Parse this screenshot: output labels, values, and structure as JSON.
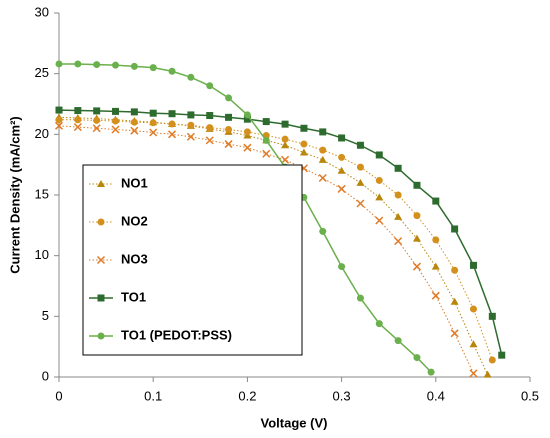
{
  "chart_data": {
    "type": "line",
    "xlabel": "Voltage (V)",
    "ylabel": "Current Density (mA/cm²)",
    "xlim": [
      0,
      0.5
    ],
    "xticks": [
      0,
      0.1,
      0.2,
      0.3,
      0.4,
      0.5
    ],
    "ylim": [
      0,
      30
    ],
    "yticks": [
      0,
      5,
      10,
      15,
      20,
      25,
      30
    ],
    "legend": "lower left",
    "series": [
      {
        "name": "NO1",
        "color": "#b8860b",
        "marker": "triangle",
        "line_style": "dotted",
        "x": [
          0,
          0.02,
          0.04,
          0.06,
          0.08,
          0.1,
          0.12,
          0.14,
          0.16,
          0.18,
          0.2,
          0.22,
          0.24,
          0.26,
          0.28,
          0.3,
          0.32,
          0.34,
          0.36,
          0.38,
          0.4,
          0.42,
          0.44,
          0.455
        ],
        "values": [
          21.4,
          21.35,
          21.3,
          21.2,
          21.1,
          21.0,
          20.85,
          20.7,
          20.45,
          20.2,
          19.9,
          19.5,
          19.1,
          18.5,
          17.9,
          17.0,
          16.0,
          14.8,
          13.2,
          11.4,
          9.1,
          6.2,
          2.7,
          0.2
        ]
      },
      {
        "name": "NO2",
        "color": "#d4901c",
        "marker": "circle",
        "line_style": "dotted",
        "x": [
          0,
          0.02,
          0.04,
          0.06,
          0.08,
          0.1,
          0.12,
          0.14,
          0.16,
          0.18,
          0.2,
          0.22,
          0.24,
          0.26,
          0.28,
          0.3,
          0.32,
          0.34,
          0.36,
          0.38,
          0.4,
          0.42,
          0.44,
          0.46
        ],
        "values": [
          21.2,
          21.2,
          21.15,
          21.1,
          21.0,
          20.95,
          20.85,
          20.75,
          20.55,
          20.4,
          20.2,
          19.9,
          19.6,
          19.2,
          18.7,
          18.1,
          17.3,
          16.2,
          15.0,
          13.3,
          11.3,
          8.8,
          5.6,
          1.4
        ]
      },
      {
        "name": "NO3",
        "color": "#e07b28",
        "marker": "x",
        "line_style": "dotted",
        "x": [
          0,
          0.02,
          0.04,
          0.06,
          0.08,
          0.1,
          0.12,
          0.14,
          0.16,
          0.18,
          0.2,
          0.22,
          0.24,
          0.26,
          0.28,
          0.3,
          0.32,
          0.34,
          0.36,
          0.38,
          0.4,
          0.42,
          0.44
        ],
        "values": [
          20.7,
          20.6,
          20.5,
          20.4,
          20.3,
          20.15,
          20.0,
          19.8,
          19.5,
          19.2,
          18.9,
          18.4,
          17.9,
          17.2,
          16.4,
          15.5,
          14.3,
          12.9,
          11.2,
          9.1,
          6.7,
          3.6,
          0.3
        ]
      },
      {
        "name": "TO1",
        "color": "#2e6b2e",
        "marker": "square",
        "line_style": "solid",
        "x": [
          0,
          0.02,
          0.04,
          0.06,
          0.08,
          0.1,
          0.12,
          0.14,
          0.16,
          0.18,
          0.2,
          0.22,
          0.24,
          0.26,
          0.28,
          0.3,
          0.32,
          0.34,
          0.36,
          0.38,
          0.4,
          0.42,
          0.44,
          0.46,
          0.47
        ],
        "values": [
          22.0,
          21.96,
          21.93,
          21.89,
          21.85,
          21.74,
          21.7,
          21.6,
          21.55,
          21.4,
          21.25,
          21.05,
          20.84,
          20.5,
          20.2,
          19.7,
          19.1,
          18.3,
          17.2,
          15.8,
          14.5,
          12.2,
          9.2,
          5.0,
          1.8
        ]
      },
      {
        "name": "TO1 (PEDOT:PSS)",
        "color": "#6ab04c",
        "marker": "circle",
        "line_style": "solid",
        "x": [
          0,
          0.02,
          0.04,
          0.06,
          0.08,
          0.1,
          0.12,
          0.14,
          0.16,
          0.18,
          0.2,
          0.22,
          0.24,
          0.26,
          0.28,
          0.3,
          0.32,
          0.34,
          0.36,
          0.38,
          0.395
        ],
        "values": [
          25.8,
          25.8,
          25.75,
          25.7,
          25.6,
          25.5,
          25.2,
          24.7,
          24.0,
          23.0,
          21.6,
          19.5,
          17.3,
          14.8,
          12.0,
          9.1,
          6.5,
          4.4,
          3.0,
          1.6,
          0.4
        ]
      }
    ]
  }
}
